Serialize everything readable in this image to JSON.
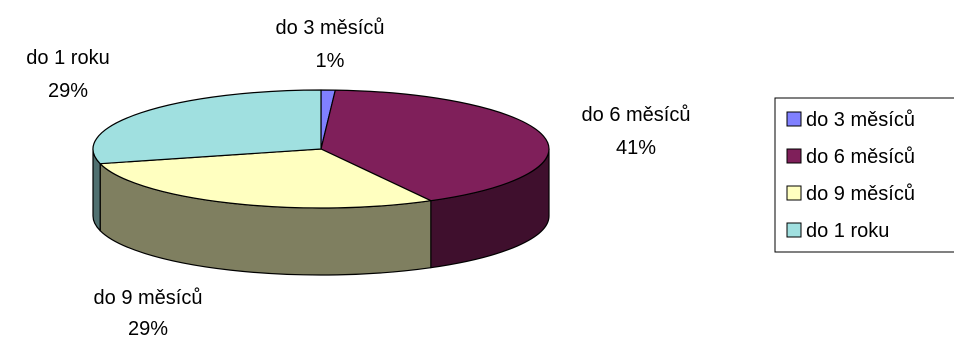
{
  "chart_data": {
    "type": "pie",
    "style": "3d-exploded-none",
    "categories": [
      "do 3 měsíců",
      "do 6 měsíců",
      "do 9 měsíců",
      "do 1 roku"
    ],
    "values": [
      1,
      41,
      29,
      29
    ],
    "value_labels": [
      "1%",
      "41%",
      "29%",
      "29%"
    ],
    "colors": [
      "#8080FF",
      "#7F1F5A",
      "#FFFFC0",
      "#A0E0E0"
    ],
    "side_colors": [
      "#40407F",
      "#3F0F2D",
      "#7F7F60",
      "#507070"
    ],
    "legend": {
      "placement": "right",
      "entries": [
        "do 3 měsíců",
        "do 6 měsíců",
        "do 9 měsíců",
        "do 1 roku"
      ]
    }
  }
}
